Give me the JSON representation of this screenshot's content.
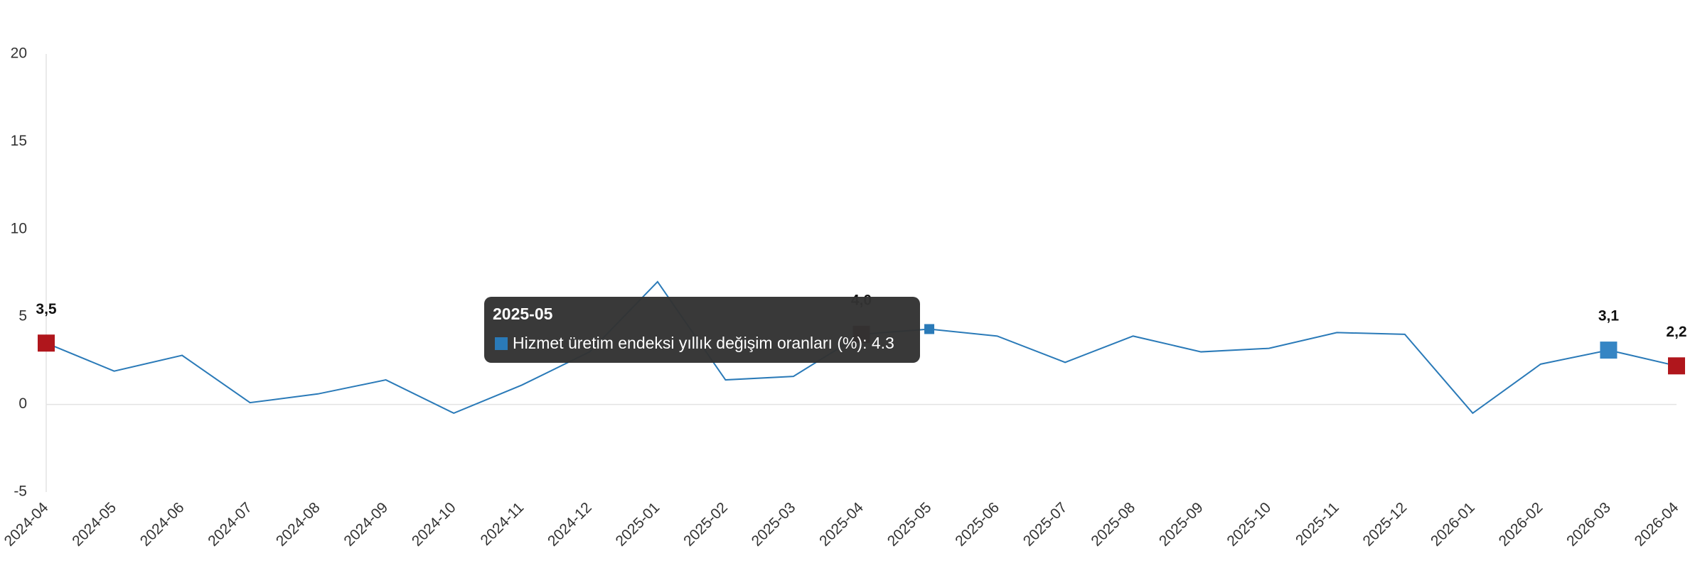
{
  "chart_data": {
    "type": "line",
    "categories": [
      "2024-04",
      "2024-05",
      "2024-06",
      "2024-07",
      "2024-08",
      "2024-09",
      "2024-10",
      "2024-11",
      "2024-12",
      "2025-01",
      "2025-02",
      "2025-03",
      "2025-04",
      "2025-05",
      "2025-06",
      "2025-07",
      "2025-08",
      "2025-09",
      "2025-10",
      "2025-11",
      "2025-12",
      "2026-01",
      "2026-02",
      "2026-03",
      "2026-04"
    ],
    "series": [
      {
        "name": "Hizmet üretim endeksi yıllık değişim oranları (%)",
        "color": "#2a7ab8",
        "values": [
          3.5,
          1.9,
          2.8,
          0.1,
          0.6,
          1.4,
          -0.5,
          1.1,
          3.0,
          7.0,
          1.4,
          1.6,
          4.0,
          4.3,
          3.9,
          2.4,
          3.9,
          3.0,
          3.2,
          4.1,
          4.0,
          -0.5,
          2.3,
          3.1,
          2.2
        ],
        "value_labels": [
          "3,5",
          null,
          null,
          null,
          null,
          null,
          null,
          null,
          null,
          null,
          null,
          null,
          "4,0",
          null,
          null,
          null,
          null,
          null,
          null,
          null,
          null,
          null,
          null,
          "3,1",
          "2,2"
        ],
        "point_colors": [
          "#b0161c",
          null,
          null,
          null,
          null,
          null,
          null,
          null,
          null,
          null,
          null,
          null,
          "#5a0d10",
          "#2a7ab8",
          null,
          null,
          null,
          null,
          null,
          null,
          null,
          null,
          null,
          "#3585c4",
          "#b0161c"
        ]
      }
    ],
    "ylim": [
      -5,
      20
    ],
    "yticks": [
      -5,
      0,
      5,
      10,
      15,
      20
    ],
    "grid": false,
    "tooltip": {
      "category": "2025-05",
      "color": "#2a7ab8",
      "text": "Hizmet üretim endeksi yıllık değişim oranları (%): 4.3"
    }
  }
}
